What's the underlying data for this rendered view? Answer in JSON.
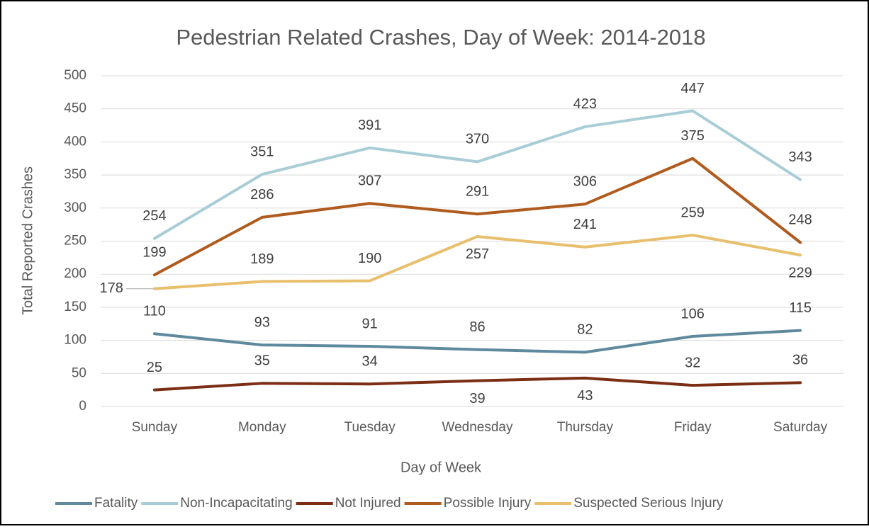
{
  "chart_data": {
    "type": "line",
    "title": "Pedestrian Related Crashes, Day of Week: 2014-2018",
    "x_label": "Day of Week",
    "y_label": "Total Reported Crashes",
    "categories": [
      "Sunday",
      "Monday",
      "Tuesday",
      "Wednesday",
      "Thursday",
      "Friday",
      "Saturday"
    ],
    "series": [
      {
        "name": "Fatality",
        "color": "#5f8a9e",
        "values": [
          110,
          93,
          91,
          86,
          82,
          106,
          115
        ]
      },
      {
        "name": "Non-Incapacitating",
        "color": "#a9cdd6",
        "values": [
          254,
          351,
          391,
          370,
          423,
          447,
          343
        ]
      },
      {
        "name": "Not Injured",
        "color": "#7b2e14",
        "values": [
          25,
          35,
          34,
          39,
          43,
          32,
          36
        ]
      },
      {
        "name": "Possible Injury",
        "color": "#b05b1e",
        "values": [
          199,
          286,
          307,
          291,
          306,
          375,
          248
        ]
      },
      {
        "name": "Suspected Serious Injury",
        "color": "#e8bf6d",
        "values": [
          178,
          189,
          190,
          257,
          241,
          259,
          229
        ]
      }
    ],
    "ylim": [
      0,
      500
    ],
    "yticks": [
      0,
      50,
      100,
      150,
      200,
      250,
      300,
      350,
      400,
      450,
      500
    ],
    "grid": true,
    "legend": "bottom"
  }
}
